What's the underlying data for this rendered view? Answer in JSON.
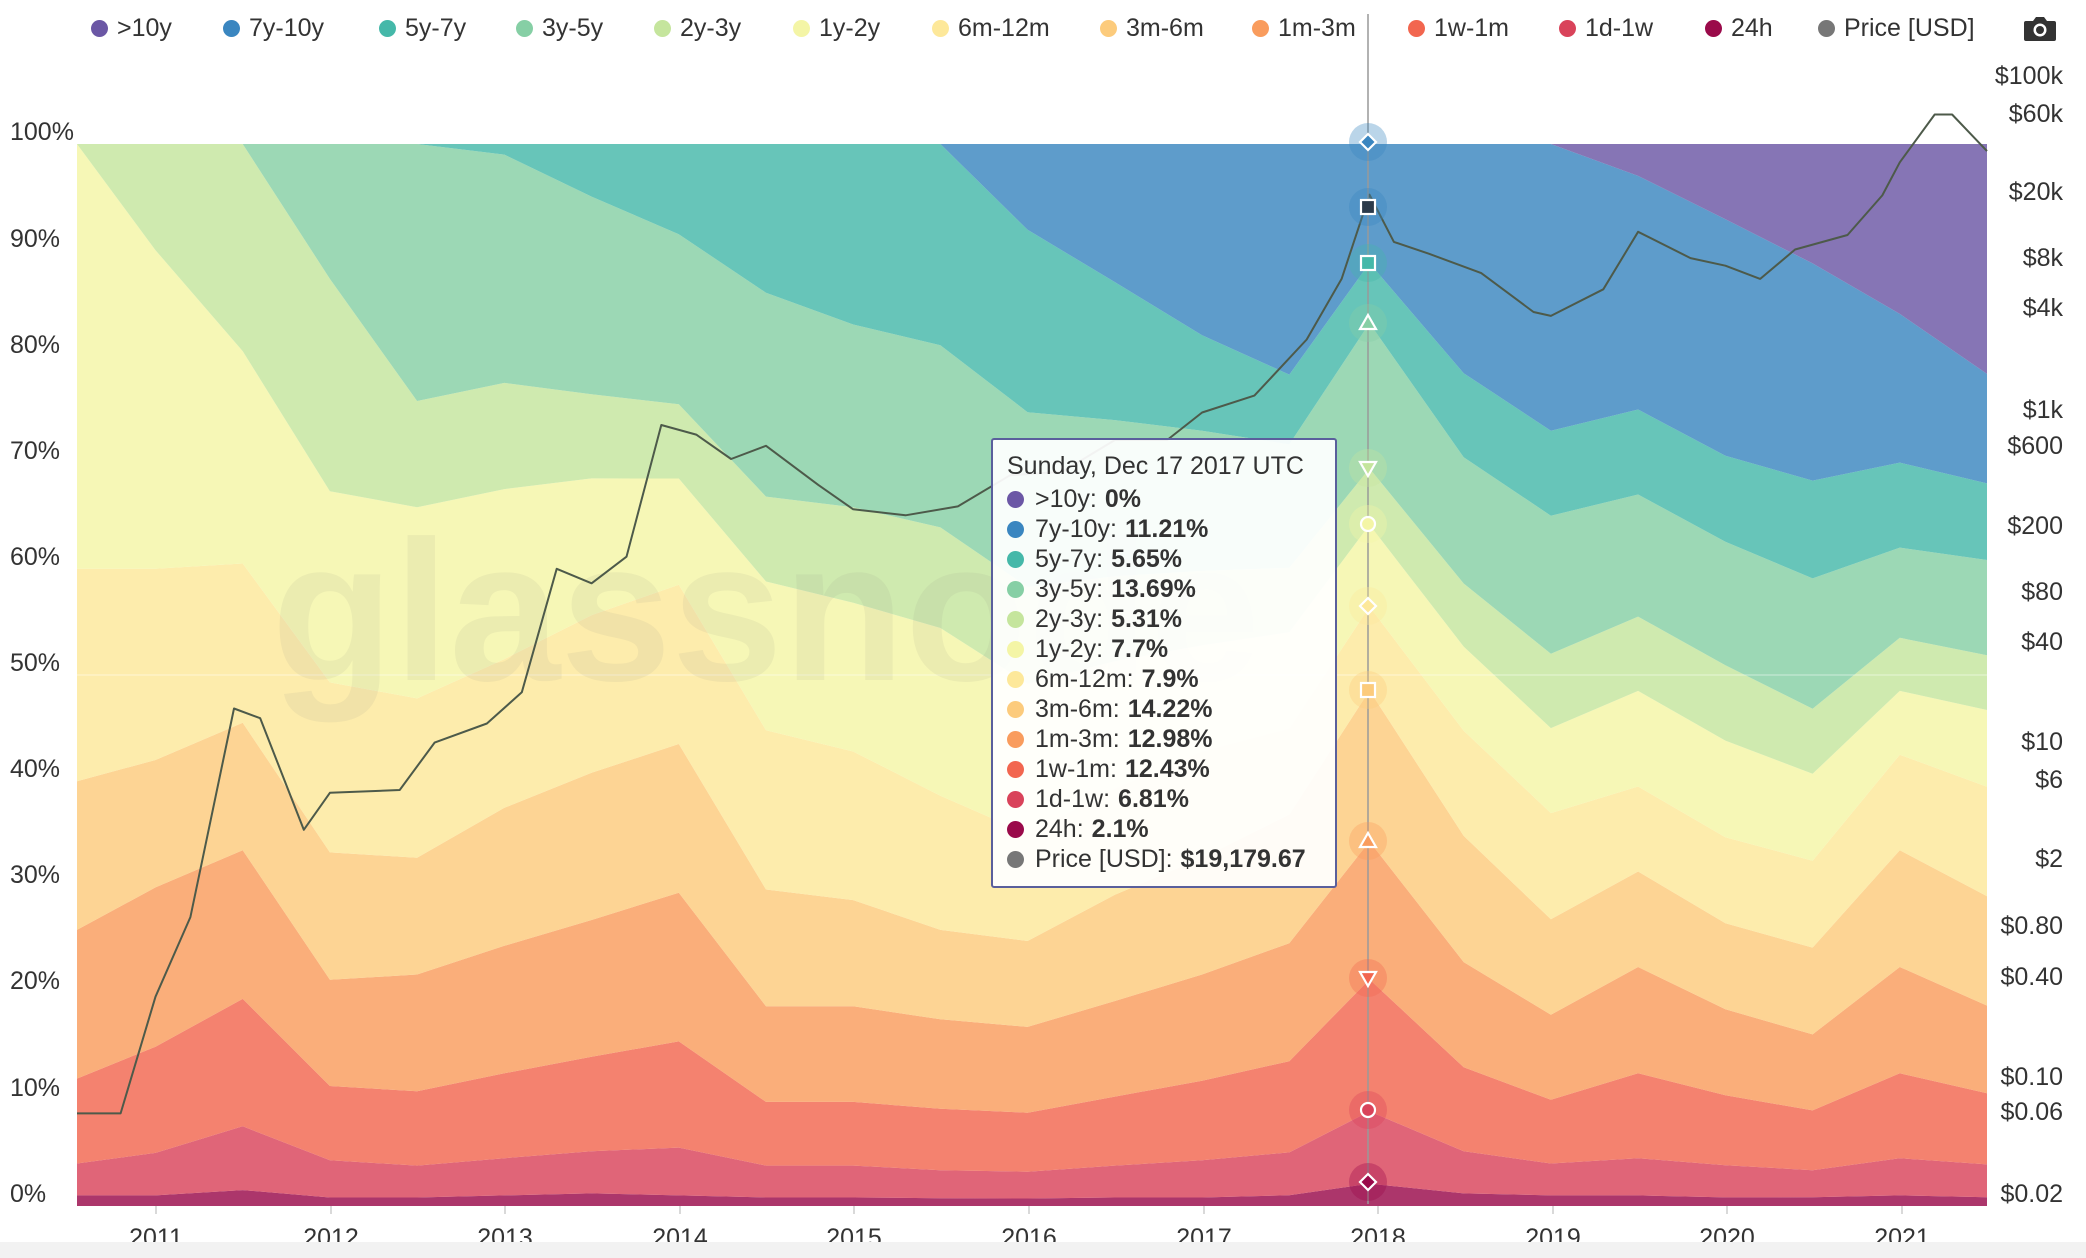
{
  "legend": [
    {
      "label": ">10y",
      "color": "#6b57a5"
    },
    {
      "label": "7y-10y",
      "color": "#3a86c0"
    },
    {
      "label": "5y-7y",
      "color": "#45b8a9"
    },
    {
      "label": "3y-5y",
      "color": "#86cfa5"
    },
    {
      "label": "2y-3y",
      "color": "#c5e59d"
    },
    {
      "label": "1y-2y",
      "color": "#f4f5a6"
    },
    {
      "label": "6m-12m",
      "color": "#fde89a"
    },
    {
      "label": "3m-6m",
      "color": "#fccb7c"
    },
    {
      "label": "1m-3m",
      "color": "#f99c5d"
    },
    {
      "label": "1w-1m",
      "color": "#f2664f"
    },
    {
      "label": "1d-1w",
      "color": "#d9435a"
    },
    {
      "label": "24h",
      "color": "#9a0a4a"
    },
    {
      "label": "Price [USD]",
      "color": "#777777"
    }
  ],
  "toolbar": {
    "camera_icon": "camera-icon"
  },
  "watermark": "glassnode",
  "tooltip": {
    "title": "Sunday, Dec 17 2017 UTC",
    "rows": [
      {
        "name": ">10y:",
        "value": "0%",
        "color": "#6b57a5"
      },
      {
        "name": "7y-10y:",
        "value": "11.21%",
        "color": "#3a86c0"
      },
      {
        "name": "5y-7y:",
        "value": "5.65%",
        "color": "#45b8a9"
      },
      {
        "name": "3y-5y:",
        "value": "13.69%",
        "color": "#86cfa5"
      },
      {
        "name": "2y-3y:",
        "value": "5.31%",
        "color": "#c5e59d"
      },
      {
        "name": "1y-2y:",
        "value": "7.7%",
        "color": "#f4f5a6"
      },
      {
        "name": "6m-12m:",
        "value": "7.9%",
        "color": "#fde89a"
      },
      {
        "name": "3m-6m:",
        "value": "14.22%",
        "color": "#fccb7c"
      },
      {
        "name": "1m-3m:",
        "value": "12.98%",
        "color": "#f99c5d"
      },
      {
        "name": "1w-1m:",
        "value": "12.43%",
        "color": "#f2664f"
      },
      {
        "name": "1d-1w:",
        "value": "6.81%",
        "color": "#d9435a"
      },
      {
        "name": "24h:",
        "value": "2.1%",
        "color": "#9a0a4a"
      },
      {
        "name": "Price [USD]:",
        "value": "$19,179.67",
        "color": "#777777"
      }
    ]
  },
  "chart_data": {
    "type": "area",
    "stacked": true,
    "normalized": true,
    "title": "",
    "xlabel": "",
    "ylabel_left": "",
    "ylabel_right": "",
    "xlim": [
      2010.55,
      2021.5
    ],
    "ylim": [
      0,
      100
    ],
    "y_ticks": [
      "0%",
      "10%",
      "20%",
      "30%",
      "40%",
      "50%",
      "60%",
      "70%",
      "80%",
      "90%",
      "100%"
    ],
    "x_ticks": [
      "2011",
      "2012",
      "2013",
      "2014",
      "2015",
      "2016",
      "2017",
      "2018",
      "2019",
      "2020",
      "2021"
    ],
    "x_tick_values": [
      2011,
      2012,
      2013,
      2014,
      2015,
      2016,
      2017,
      2018,
      2019,
      2020,
      2021
    ],
    "right_axis": {
      "scale": "log",
      "labels": [
        "$0.02",
        "$0.06",
        "$0.10",
        "$0.40",
        "$0.80",
        "$2",
        "$6",
        "$10",
        "$40",
        "$80",
        "$200",
        "$600",
        "$1k",
        "$4k",
        "$8k",
        "$20k",
        "$60k",
        "$100k"
      ],
      "values": [
        0.02,
        0.06,
        0.1,
        0.4,
        0.8,
        2,
        6,
        10,
        40,
        80,
        200,
        600,
        1000,
        4000,
        8000,
        20000,
        60000,
        100000
      ]
    },
    "x": [
      2010.55,
      2011.0,
      2011.5,
      2012.0,
      2012.5,
      2013.0,
      2013.5,
      2014.0,
      2014.5,
      2015.0,
      2015.5,
      2016.0,
      2016.5,
      2017.0,
      2017.5,
      2017.96,
      2018.5,
      2019.0,
      2019.5,
      2020.0,
      2020.5,
      2021.0,
      2021.5
    ],
    "series": [
      {
        "name": "24h",
        "values": [
          1.0,
          1.0,
          1.5,
          0.8,
          0.8,
          1.0,
          1.2,
          1.0,
          0.8,
          0.8,
          0.7,
          0.7,
          0.8,
          0.8,
          1.0,
          2.1,
          1.2,
          1.0,
          1.0,
          0.8,
          0.8,
          1.0,
          0.8
        ]
      },
      {
        "name": "1d-1w",
        "values": [
          3.0,
          4.0,
          6.0,
          3.5,
          3.0,
          3.5,
          4.0,
          4.5,
          3.0,
          3.0,
          2.5,
          2.5,
          3.0,
          3.5,
          4.0,
          6.81,
          4.0,
          3.0,
          3.5,
          3.0,
          2.5,
          3.5,
          3.0
        ]
      },
      {
        "name": "1w-1m",
        "values": [
          8.0,
          10.0,
          12.0,
          7.0,
          7.0,
          8.0,
          9.0,
          10.0,
          6.0,
          6.0,
          5.5,
          5.5,
          6.5,
          7.5,
          8.5,
          12.43,
          8.0,
          6.0,
          8.0,
          6.5,
          5.5,
          8.0,
          6.5
        ]
      },
      {
        "name": "1m-3m",
        "values": [
          14.0,
          15.0,
          14.0,
          10.0,
          11.0,
          12.0,
          13.0,
          14.0,
          9.0,
          9.0,
          8.0,
          8.0,
          9.0,
          10.0,
          11.0,
          12.98,
          10.0,
          8.0,
          10.0,
          8.0,
          7.0,
          10.0,
          8.0
        ]
      },
      {
        "name": "3m-6m",
        "values": [
          14.0,
          12.0,
          12.0,
          12.0,
          11.0,
          13.0,
          14.0,
          14.0,
          11.0,
          10.0,
          8.0,
          8.0,
          10.0,
          11.0,
          12.0,
          14.22,
          12.0,
          9.0,
          9.0,
          8.0,
          8.0,
          11.0,
          10.0
        ]
      },
      {
        "name": "6m-12m",
        "values": [
          20.0,
          18.0,
          15.0,
          16.0,
          15.0,
          14.0,
          15.0,
          15.0,
          15.0,
          14.0,
          12.0,
          10.0,
          10.0,
          10.0,
          8.0,
          7.9,
          10.0,
          10.0,
          8.0,
          8.0,
          8.0,
          9.0,
          10.0
        ]
      },
      {
        "name": "1y-2y",
        "values": [
          40.0,
          30.0,
          20.0,
          18.0,
          18.0,
          16.0,
          13.0,
          10.0,
          14.0,
          14.0,
          15.0,
          14.0,
          12.0,
          10.0,
          9.0,
          7.7,
          8.0,
          8.0,
          9.0,
          9.0,
          8.0,
          6.0,
          7.0
        ]
      },
      {
        "name": "2y-3y",
        "values": [
          0.0,
          10.0,
          19.5,
          20.0,
          10.0,
          10.0,
          8.0,
          7.0,
          8.0,
          9.0,
          9.0,
          9.0,
          8.0,
          7.0,
          6.0,
          5.31,
          6.0,
          7.0,
          7.0,
          7.0,
          6.0,
          5.0,
          5.0
        ]
      },
      {
        "name": "3y-5y",
        "values": [
          0.0,
          0.0,
          0.0,
          12.7,
          24.2,
          21.5,
          18.8,
          16.0,
          19.2,
          17.2,
          16.3,
          16.3,
          14.7,
          13.2,
          11.5,
          13.69,
          12.0,
          13.0,
          11.5,
          11.5,
          12.0,
          8.5,
          8.7
        ]
      },
      {
        "name": "5y-7y",
        "values": [
          0.0,
          0.0,
          0.0,
          0.0,
          0.0,
          1.0,
          5.0,
          8.5,
          14.0,
          17.0,
          18.0,
          17.0,
          13.0,
          9.0,
          6.5,
          5.65,
          8.0,
          8.0,
          8.0,
          8.0,
          9.0,
          8.0,
          7.0
        ]
      },
      {
        "name": "7y-10y",
        "values": [
          0.0,
          0.0,
          0.0,
          0.0,
          0.0,
          0.0,
          0.0,
          0.0,
          0.0,
          0.0,
          0.0,
          8.0,
          13.0,
          18.0,
          21.5,
          11.21,
          21.8,
          27.0,
          22.0,
          22.0,
          20.0,
          14.0,
          10.0
        ]
      },
      {
        "name": ">10y",
        "values": [
          0.0,
          0.0,
          0.0,
          0.0,
          0.0,
          0.0,
          0.0,
          0.0,
          0.0,
          0.0,
          0.0,
          0.0,
          0.0,
          0.0,
          0.0,
          0.0,
          0.0,
          0.0,
          3.0,
          7.0,
          11.0,
          16.0,
          21.0
        ]
      }
    ],
    "price": {
      "name": "Price [USD]",
      "x": [
        2010.55,
        2010.8,
        2011.0,
        2011.2,
        2011.45,
        2011.6,
        2011.85,
        2012.0,
        2012.4,
        2012.6,
        2012.9,
        2013.1,
        2013.3,
        2013.5,
        2013.7,
        2013.9,
        2014.1,
        2014.3,
        2014.5,
        2014.8,
        2015.0,
        2015.3,
        2015.6,
        2015.9,
        2016.2,
        2016.5,
        2016.8,
        2017.0,
        2017.3,
        2017.6,
        2017.8,
        2017.96,
        2018.1,
        2018.3,
        2018.6,
        2018.9,
        2019.0,
        2019.3,
        2019.5,
        2019.8,
        2020.0,
        2020.2,
        2020.4,
        2020.7,
        2020.9,
        2021.0,
        2021.2,
        2021.3,
        2021.5
      ],
      "values": [
        0.06,
        0.06,
        0.3,
        0.9,
        16,
        14,
        3,
        5,
        5.2,
        10,
        13,
        20,
        110,
        90,
        130,
        800,
        700,
        500,
        600,
        350,
        250,
        230,
        260,
        400,
        420,
        650,
        650,
        950,
        1200,
        2600,
        6000,
        19180,
        10000,
        8500,
        6500,
        3800,
        3600,
        5200,
        11500,
        8000,
        7200,
        6000,
        9000,
        11000,
        19000,
        30000,
        58000,
        58000,
        35000
      ]
    }
  }
}
